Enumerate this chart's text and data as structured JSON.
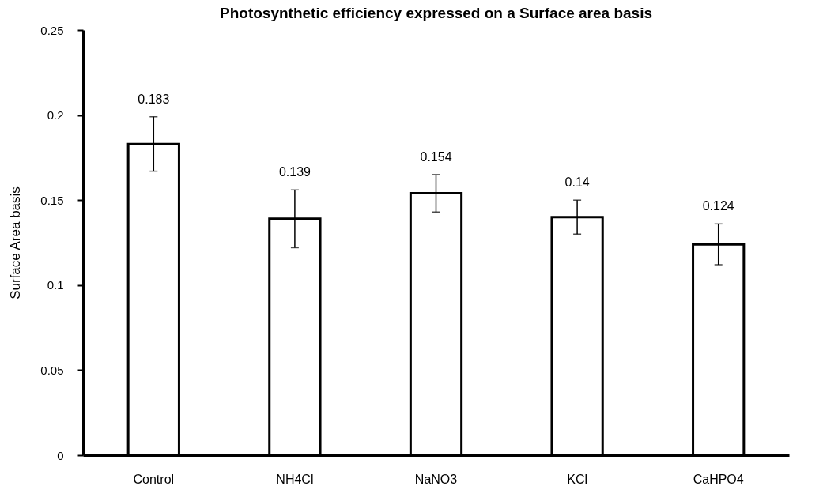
{
  "chart_data": {
    "type": "bar",
    "title": "Photosynthetic efficiency expressed on a Surface area basis",
    "ylabel": "Surface Area basis",
    "categories": [
      "Control",
      "NH4Cl",
      "NaNO3",
      "KCl",
      "CaHPO4"
    ],
    "values": [
      0.183,
      0.139,
      0.154,
      0.14,
      0.124
    ],
    "errors": [
      0.016,
      0.017,
      0.011,
      0.01,
      0.012
    ],
    "color": "#ffffff",
    "ylim": [
      0,
      0.25
    ],
    "yticks": [
      0,
      0.05,
      0.1,
      0.15,
      0.2,
      0.25
    ],
    "data_labels": true,
    "grid": false
  }
}
